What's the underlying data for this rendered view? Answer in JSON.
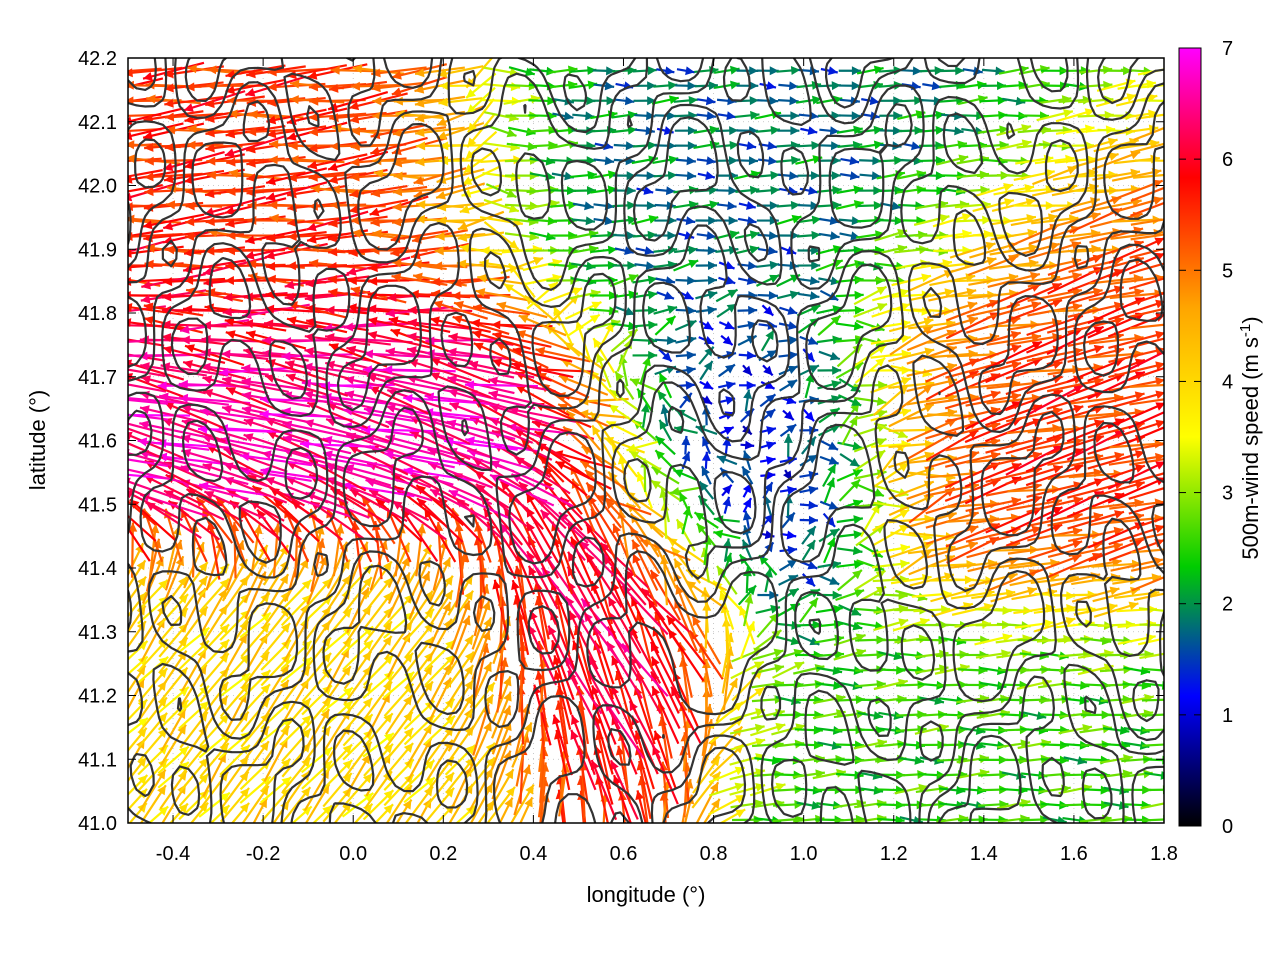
{
  "chart_data": {
    "type": "vector-field",
    "xlabel": "longitude (°)",
    "ylabel": "latitude (°)",
    "xlim": [
      -0.5,
      1.8
    ],
    "ylim": [
      41.0,
      42.2
    ],
    "x_ticks": [
      -0.4,
      -0.2,
      0.0,
      0.2,
      0.4,
      0.6,
      0.8,
      1.0,
      1.2,
      1.4,
      1.6,
      1.8
    ],
    "x_tick_labels": [
      "-0.4",
      "-0.2",
      "0.0",
      "0.2",
      "0.4",
      "0.6",
      "0.8",
      "1.0",
      "1.2",
      "1.4",
      "1.6",
      "1.8"
    ],
    "y_ticks": [
      41.0,
      41.1,
      41.2,
      41.3,
      41.4,
      41.5,
      41.6,
      41.7,
      41.8,
      41.9,
      42.0,
      42.1,
      42.2
    ],
    "y_tick_labels": [
      "41.0",
      "41.1",
      "41.2",
      "41.3",
      "41.4",
      "41.5",
      "41.6",
      "41.7",
      "41.8",
      "41.9",
      "42.0",
      "42.1",
      "42.2"
    ],
    "grid": true,
    "colorbar": {
      "label": "500m-wind speed (m s",
      "label_sup": "-1",
      "label_end": ")",
      "range": [
        0,
        7
      ],
      "ticks": [
        "0",
        "1",
        "2",
        "3",
        "4",
        "5",
        "6",
        "7"
      ],
      "colormap": [
        "#000000",
        "#0000ff",
        "#00cc00",
        "#ffff00",
        "#ffa500",
        "#ff0000",
        "#ff00ff"
      ]
    },
    "vector_regions": [
      {
        "region": "northwest",
        "lon": [
          -0.5,
          0.2
        ],
        "lat": [
          41.7,
          42.2
        ],
        "direction": "west",
        "speed": 5.5
      },
      {
        "region": "west-central jet",
        "lon": [
          -0.5,
          0.4
        ],
        "lat": [
          41.5,
          41.8
        ],
        "direction": "west-northwest",
        "speed": 6.8
      },
      {
        "region": "southwest",
        "lon": [
          -0.5,
          0.4
        ],
        "lat": [
          41.0,
          41.4
        ],
        "direction": "northeast",
        "speed": 4.0
      },
      {
        "region": "central south",
        "lon": [
          0.4,
          0.7
        ],
        "lat": [
          41.1,
          41.5
        ],
        "direction": "northwest",
        "speed": 6.5
      },
      {
        "region": "center calm",
        "lon": [
          0.7,
          1.1
        ],
        "lat": [
          41.4,
          41.8
        ],
        "direction": "variable",
        "speed": 1.0
      },
      {
        "region": "north-center",
        "lon": [
          0.4,
          1.3
        ],
        "lat": [
          41.8,
          42.2
        ],
        "direction": "east",
        "speed": 1.8
      },
      {
        "region": "east",
        "lon": [
          1.2,
          1.8
        ],
        "lat": [
          41.4,
          41.9
        ],
        "direction": "east-northeast",
        "speed": 5.5
      },
      {
        "region": "southeast",
        "lon": [
          1.0,
          1.8
        ],
        "lat": [
          41.0,
          41.3
        ],
        "direction": "east",
        "speed": 2.5
      }
    ],
    "contours": "terrain elevation isolines (dark gray)"
  }
}
